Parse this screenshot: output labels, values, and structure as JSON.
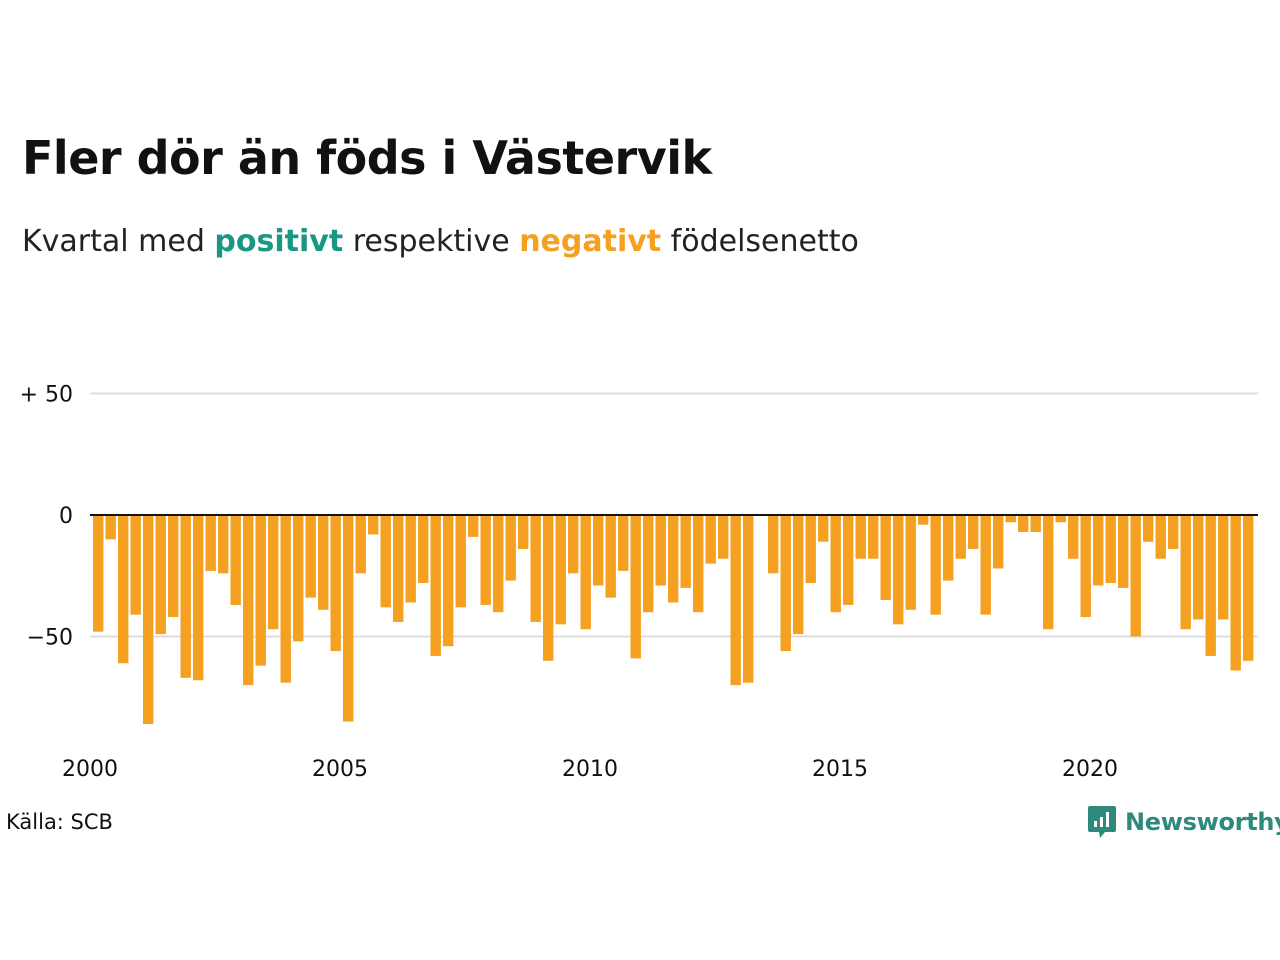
{
  "header": {
    "title": "Fler dör än föds i Västervik",
    "subtitle_prefix": "Kvartal med ",
    "subtitle_positive": "positivt",
    "subtitle_middle": " respektive ",
    "subtitle_negative": "negativt",
    "subtitle_suffix": " födelsenetto"
  },
  "footer": {
    "source": "Källa: SCB",
    "brand": "Newsworthy"
  },
  "colors": {
    "positive": "#1a9783",
    "negative": "#f5a020",
    "grid": "#dddddd",
    "zero_line": "#111111",
    "brand": "#2e8a7c"
  },
  "chart_data": {
    "type": "bar",
    "title": "Fler dör än föds i Västervik",
    "xlabel": "",
    "ylabel": "",
    "ylim": [
      -90,
      55
    ],
    "grid": true,
    "x_start": 2000,
    "periods_per_year": 4,
    "x_ticks": [
      "2000",
      "2005",
      "2010",
      "2015",
      "2020"
    ],
    "y_ticks": [
      {
        "value": 50,
        "label": "+ 50"
      },
      {
        "value": 0,
        "label": "0"
      },
      {
        "value": -50,
        "label": "−50"
      }
    ],
    "series": [
      {
        "values": [
          -48,
          -10,
          -61,
          -41,
          -86,
          -49,
          -42,
          -67,
          -68,
          -23,
          -24,
          -37,
          -70,
          -62,
          -47,
          -69,
          -52,
          -34,
          -39,
          -56,
          -85,
          -24,
          -8,
          -38,
          -44,
          -36,
          -28,
          -58,
          -54,
          -38,
          -9,
          -37,
          -40,
          -27,
          -14,
          -44,
          -60,
          -45,
          -24,
          -47,
          -29,
          -34,
          -23,
          -59,
          -40,
          -29,
          -36,
          -30,
          -40,
          -20,
          -18,
          -70,
          -69,
          0,
          -24,
          -56,
          -49,
          -28,
          -11,
          -40,
          -37,
          -18,
          -18,
          -35,
          -45,
          -39,
          -4,
          -41,
          -27,
          -18,
          -14,
          -41,
          -22,
          -3,
          -7,
          -7,
          -47,
          -3,
          -18,
          -42,
          -29,
          -28,
          -30,
          -50,
          -11,
          -18,
          -14,
          -47,
          -43,
          -58,
          -43,
          -64,
          -60
        ]
      }
    ]
  }
}
